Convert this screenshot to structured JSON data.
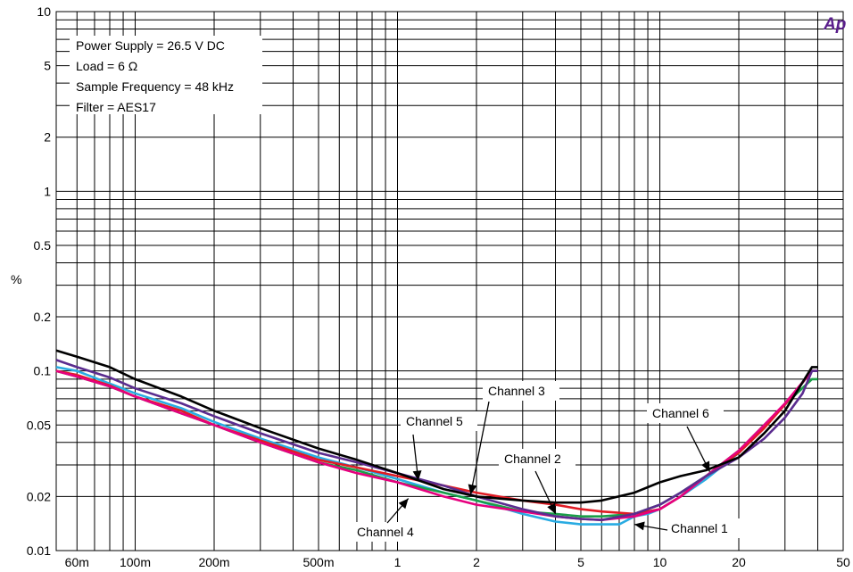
{
  "chart_data": {
    "type": "line",
    "title": "",
    "xlabel": "",
    "ylabel": "%",
    "x_scale": "log",
    "y_scale": "log",
    "xlim": [
      0.05,
      50
    ],
    "ylim": [
      0.01,
      10
    ],
    "grid": true,
    "logo_text": "Ap",
    "x_ticks": [
      {
        "v": 0.06,
        "label": "60m"
      },
      {
        "v": 0.1,
        "label": "100m"
      },
      {
        "v": 0.2,
        "label": "200m"
      },
      {
        "v": 0.5,
        "label": "500m"
      },
      {
        "v": 1,
        "label": "1"
      },
      {
        "v": 2,
        "label": "2"
      },
      {
        "v": 5,
        "label": "5"
      },
      {
        "v": 10,
        "label": "10"
      },
      {
        "v": 20,
        "label": "20"
      },
      {
        "v": 50,
        "label": "50"
      }
    ],
    "y_ticks": [
      {
        "v": 0.01,
        "label": "0.01"
      },
      {
        "v": 0.02,
        "label": "0.02"
      },
      {
        "v": 0.05,
        "label": "0.05"
      },
      {
        "v": 0.1,
        "label": "0.1"
      },
      {
        "v": 0.2,
        "label": "0.2"
      },
      {
        "v": 0.5,
        "label": "0.5"
      },
      {
        "v": 1,
        "label": "1"
      },
      {
        "v": 2,
        "label": "2"
      },
      {
        "v": 5,
        "label": "5"
      },
      {
        "v": 10,
        "label": "10"
      }
    ],
    "conditions": [
      "Power Supply = 26.5 V DC",
      "Load = 6 Ω",
      "Sample Frequency = 48 kHz",
      "Filter = AES17"
    ],
    "series": [
      {
        "name": "Channel 1",
        "color": "#29abe2",
        "x": [
          0.05,
          0.06,
          0.08,
          0.1,
          0.15,
          0.2,
          0.3,
          0.5,
          0.7,
          1,
          1.5,
          2,
          3,
          4,
          5,
          6,
          7,
          8,
          9,
          10,
          12,
          15,
          20,
          25,
          30,
          38,
          40
        ],
        "y": [
          0.105,
          0.1,
          0.085,
          0.075,
          0.062,
          0.052,
          0.042,
          0.033,
          0.029,
          0.025,
          0.021,
          0.019,
          0.016,
          0.0145,
          0.014,
          0.014,
          0.014,
          0.0155,
          0.016,
          0.017,
          0.02,
          0.025,
          0.035,
          0.05,
          0.065,
          0.1,
          0.1
        ]
      },
      {
        "name": "Channel 2",
        "color": "#1a9e48",
        "x": [
          0.05,
          0.06,
          0.08,
          0.1,
          0.15,
          0.2,
          0.3,
          0.5,
          0.7,
          1,
          1.5,
          2,
          3,
          4,
          5,
          6,
          8,
          10,
          12,
          15,
          20,
          25,
          30,
          38,
          40
        ],
        "y": [
          0.1,
          0.093,
          0.082,
          0.072,
          0.058,
          0.05,
          0.04,
          0.031,
          0.028,
          0.024,
          0.021,
          0.019,
          0.0165,
          0.016,
          0.0155,
          0.0155,
          0.016,
          0.018,
          0.021,
          0.026,
          0.036,
          0.05,
          0.065,
          0.09,
          0.09
        ]
      },
      {
        "name": "Channel 3",
        "color": "#e01b24",
        "x": [
          0.05,
          0.06,
          0.08,
          0.1,
          0.15,
          0.2,
          0.3,
          0.5,
          0.7,
          1,
          1.5,
          2,
          3,
          4,
          5,
          6,
          8,
          10,
          12,
          15,
          20,
          25,
          30,
          38,
          40
        ],
        "y": [
          0.1,
          0.095,
          0.083,
          0.072,
          0.06,
          0.05,
          0.041,
          0.032,
          0.029,
          0.026,
          0.023,
          0.021,
          0.019,
          0.018,
          0.017,
          0.0165,
          0.016,
          0.017,
          0.02,
          0.026,
          0.035,
          0.048,
          0.065,
          0.1,
          0.1
        ]
      },
      {
        "name": "Channel 4",
        "color": "#e6007e",
        "x": [
          0.05,
          0.06,
          0.08,
          0.1,
          0.15,
          0.2,
          0.3,
          0.5,
          0.7,
          1,
          1.5,
          2,
          3,
          4,
          5,
          6,
          8,
          10,
          12,
          15,
          20,
          25,
          30,
          38,
          40
        ],
        "y": [
          0.1,
          0.093,
          0.082,
          0.072,
          0.058,
          0.05,
          0.04,
          0.031,
          0.027,
          0.024,
          0.02,
          0.018,
          0.0165,
          0.0155,
          0.015,
          0.0148,
          0.0155,
          0.017,
          0.02,
          0.026,
          0.036,
          0.05,
          0.066,
          0.1,
          0.1
        ]
      },
      {
        "name": "Channel 5",
        "color": "#5b2c8f",
        "x": [
          0.05,
          0.06,
          0.08,
          0.1,
          0.15,
          0.2,
          0.3,
          0.5,
          0.7,
          1,
          1.5,
          2,
          3,
          4,
          5,
          6,
          8,
          10,
          12,
          15,
          20,
          25,
          30,
          35,
          38,
          40
        ],
        "y": [
          0.115,
          0.105,
          0.092,
          0.08,
          0.066,
          0.056,
          0.045,
          0.035,
          0.031,
          0.027,
          0.023,
          0.02,
          0.017,
          0.0155,
          0.015,
          0.0148,
          0.016,
          0.018,
          0.021,
          0.026,
          0.033,
          0.042,
          0.055,
          0.075,
          0.1,
          0.1
        ]
      },
      {
        "name": "Channel 6",
        "color": "#000000",
        "x": [
          0.05,
          0.06,
          0.08,
          0.1,
          0.15,
          0.2,
          0.3,
          0.5,
          0.7,
          1,
          1.5,
          2,
          3,
          4,
          5,
          6,
          8,
          10,
          12,
          15,
          20,
          25,
          30,
          38,
          40
        ],
        "y": [
          0.13,
          0.12,
          0.105,
          0.09,
          0.072,
          0.06,
          0.048,
          0.037,
          0.032,
          0.027,
          0.022,
          0.02,
          0.019,
          0.0185,
          0.0185,
          0.019,
          0.021,
          0.024,
          0.026,
          0.028,
          0.033,
          0.045,
          0.06,
          0.105,
          0.105
        ]
      }
    ],
    "annotations": [
      {
        "text": "Channel 3",
        "series": "Channel 3",
        "at": [
          1.9,
          0.0205
        ]
      },
      {
        "text": "Channel 5",
        "series": "Channel 5",
        "at": [
          1.2,
          0.0245
        ]
      },
      {
        "text": "Channel 6",
        "series": "Channel 6",
        "at": [
          15.5,
          0.0275
        ]
      },
      {
        "text": "Channel 2",
        "series": "Channel 2",
        "at": [
          4.0,
          0.016
        ]
      },
      {
        "text": "Channel 4",
        "series": "Channel 4",
        "at": [
          1.1,
          0.0195
        ]
      },
      {
        "text": "Channel 1",
        "series": "Channel 1",
        "at": [
          8.0,
          0.014
        ]
      }
    ]
  }
}
